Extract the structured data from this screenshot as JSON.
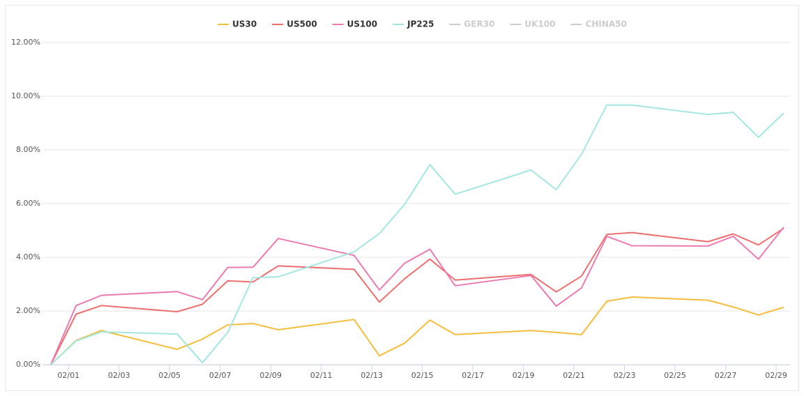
{
  "chart_data": {
    "type": "line",
    "x": [
      0.3,
      1.3,
      2.3,
      5.3,
      6.3,
      7.3,
      8.3,
      9.3,
      12.3,
      13.3,
      14.3,
      15.3,
      16.3,
      19.3,
      20.3,
      21.3,
      22.3,
      23.3,
      26.3,
      27.3,
      28.3,
      29.3
    ],
    "series": [
      {
        "name": "US30",
        "color": "#f5bd3c",
        "visible": true,
        "values": [
          0,
          0.9,
          1.27,
          0.57,
          0.95,
          1.48,
          1.53,
          1.3,
          1.68,
          0.33,
          0.8,
          1.66,
          1.12,
          1.27,
          1.2,
          1.12,
          2.36,
          2.52,
          2.4,
          2.15,
          1.85,
          2.14
        ]
      },
      {
        "name": "US500",
        "color": "#ee6e6e",
        "visible": true,
        "values": [
          0,
          1.88,
          2.2,
          1.97,
          2.25,
          3.12,
          3.08,
          3.68,
          3.55,
          2.33,
          3.2,
          3.93,
          3.15,
          3.36,
          2.71,
          3.3,
          4.85,
          4.92,
          4.58,
          4.87,
          4.46,
          5.08
        ]
      },
      {
        "name": "US100",
        "color": "#eb7ab0",
        "visible": true,
        "values": [
          0,
          2.2,
          2.58,
          2.72,
          2.42,
          3.62,
          3.63,
          4.7,
          4.07,
          2.78,
          3.78,
          4.3,
          2.94,
          3.32,
          2.18,
          2.86,
          4.78,
          4.43,
          4.42,
          4.78,
          3.93,
          5.12
        ]
      },
      {
        "name": "JP225",
        "color": "#a3e6e2",
        "visible": true,
        "values": [
          0,
          0.88,
          1.22,
          1.14,
          0.07,
          1.2,
          3.24,
          3.27,
          4.2,
          4.88,
          5.97,
          7.45,
          6.35,
          7.25,
          6.52,
          7.84,
          9.67,
          9.67,
          9.32,
          9.4,
          8.47,
          9.37
        ]
      },
      {
        "name": "GER30",
        "color": "#cccccc",
        "visible": false,
        "values": [
          null,
          null,
          null,
          null,
          null,
          null,
          null,
          null,
          null,
          null,
          null,
          null,
          null,
          null,
          null,
          null,
          null,
          null,
          null,
          null,
          null,
          null
        ]
      },
      {
        "name": "UK100",
        "color": "#cccccc",
        "visible": false,
        "values": [
          null,
          null,
          null,
          null,
          null,
          null,
          null,
          null,
          null,
          null,
          null,
          null,
          null,
          null,
          null,
          null,
          null,
          null,
          null,
          null,
          null,
          null
        ]
      },
      {
        "name": "CHINA50",
        "color": "#cccccc",
        "visible": false,
        "values": [
          null,
          null,
          null,
          null,
          null,
          null,
          null,
          null,
          null,
          null,
          null,
          null,
          null,
          null,
          null,
          null,
          null,
          null,
          null,
          null,
          null,
          null
        ]
      }
    ],
    "xlim": [
      0,
      29.55
    ],
    "xticks": [
      {
        "value": 1,
        "label": "02/01"
      },
      {
        "value": 3,
        "label": "02/03"
      },
      {
        "value": 5,
        "label": "02/05"
      },
      {
        "value": 7,
        "label": "02/07"
      },
      {
        "value": 9,
        "label": "02/09"
      },
      {
        "value": 11,
        "label": "02/11"
      },
      {
        "value": 13,
        "label": "02/13"
      },
      {
        "value": 15,
        "label": "02/15"
      },
      {
        "value": 17,
        "label": "02/17"
      },
      {
        "value": 19,
        "label": "02/19"
      },
      {
        "value": 21,
        "label": "02/21"
      },
      {
        "value": 23,
        "label": "02/23"
      },
      {
        "value": 25,
        "label": "02/25"
      },
      {
        "value": 27,
        "label": "02/27"
      },
      {
        "value": 29,
        "label": "02/29"
      }
    ],
    "ylim": [
      0,
      12
    ],
    "yticks": [
      {
        "value": 0,
        "label": "0.00%"
      },
      {
        "value": 2,
        "label": "2.00%"
      },
      {
        "value": 4,
        "label": "4.00%"
      },
      {
        "value": 6,
        "label": "6.00%"
      },
      {
        "value": 8,
        "label": "8.00%"
      },
      {
        "value": 10,
        "label": "10.00%"
      },
      {
        "value": 12,
        "label": "12.00%"
      }
    ],
    "grid": true,
    "legend": "top"
  }
}
